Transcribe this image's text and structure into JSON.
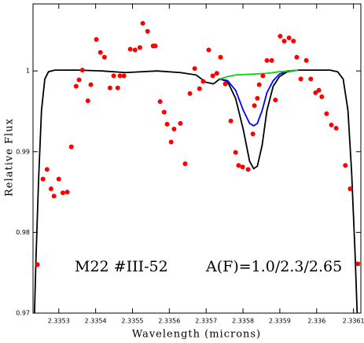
{
  "chart_data": {
    "type": "scatter",
    "xlabel": "Wavelength (microns)",
    "ylabel": "Relative Flux",
    "annotations": [
      "M22 #III-52",
      "A(F)=1.0/2.3/2.65"
    ],
    "xlim": [
      2.33523,
      2.33612
    ],
    "ylim": [
      0.97,
      1.0083
    ],
    "xticks": [
      2.3353,
      2.3354,
      2.3355,
      2.3356,
      2.3357,
      2.3358,
      2.3359,
      2.336,
      2.3361
    ],
    "yticks": [
      0.97,
      0.98,
      0.99,
      1
    ],
    "points": {
      "color": "#ff0000",
      "x": [
        2.335242,
        2.335257,
        2.335268,
        2.335279,
        2.335287,
        2.3353,
        2.335311,
        2.335323,
        2.335334,
        2.335347,
        2.335355,
        2.335364,
        2.335379,
        2.335387,
        2.335402,
        2.335413,
        2.335424,
        2.335439,
        2.335449,
        2.33546,
        2.335466,
        2.335477,
        2.335494,
        2.335507,
        2.33552,
        2.335528,
        2.335541,
        2.335556,
        2.335562,
        2.335575,
        2.335586,
        2.335594,
        2.335605,
        2.335613,
        2.33563,
        2.335643,
        2.335656,
        2.335669,
        2.335682,
        2.335692,
        2.335707,
        2.335718,
        2.335729,
        2.335739,
        2.335752,
        2.335767,
        2.33578,
        2.335788,
        2.335799,
        2.335814,
        2.335827,
        2.335831,
        2.335839,
        2.335844,
        2.335854,
        2.335865,
        2.335878,
        2.335888,
        2.335901,
        2.335912,
        2.335925,
        2.335937,
        2.335946,
        2.335957,
        2.335972,
        2.335984,
        2.335997,
        2.336006,
        2.336014,
        2.336027,
        2.33604,
        2.336053,
        2.336078,
        2.336091,
        2.336112
      ],
      "y": [
        0.976,
        0.9866,
        0.9878,
        0.9854,
        0.9845,
        0.9866,
        0.9849,
        0.985,
        0.9906,
        0.9981,
        0.9989,
        1.0001,
        0.9963,
        0.9983,
        1.0039,
        1.0023,
        1.0017,
        0.9979,
        0.9994,
        0.9979,
        0.9994,
        0.9994,
        1.0027,
        1.0026,
        1.0029,
        1.0059,
        1.0049,
        1.0031,
        1.0031,
        0.9962,
        0.9949,
        0.9934,
        0.9912,
        0.9928,
        0.9935,
        0.9885,
        0.9972,
        1.0003,
        0.9978,
        0.9987,
        1.0026,
        0.9994,
        0.9997,
        1.0017,
        0.9984,
        0.9938,
        0.9899,
        0.9883,
        0.9881,
        0.9878,
        0.9922,
        0.9957,
        0.9966,
        0.9983,
        0.9994,
        1.0013,
        1.0013,
        0.9964,
        1.0043,
        1.0037,
        1.0041,
        1.0037,
        1.0017,
        0.999,
        1.0013,
        0.999,
        0.9973,
        0.9976,
        0.9968,
        0.9947,
        0.9933,
        0.9929,
        0.9883,
        0.9854,
        0.9761
      ]
    },
    "lines": [
      {
        "color": "#000000",
        "x": [
          2.335234,
          2.335238,
          2.335245,
          2.335253,
          2.335262,
          2.335272,
          2.335289,
          2.335353,
          2.335417,
          2.335481,
          2.335567,
          2.33563,
          2.335673,
          2.335699,
          2.33572,
          2.335737,
          2.335758,
          2.33578,
          2.335801,
          2.335818,
          2.335829,
          2.335839,
          2.335852,
          2.335865,
          2.335882,
          2.335899,
          2.33592,
          2.33595,
          2.336036,
          2.336057,
          2.336072,
          2.336085,
          2.336095,
          2.336104,
          2.33611
        ],
        "y": [
          0.97,
          0.9767,
          0.9864,
          0.9951,
          0.999,
          0.9999,
          1.0001,
          1.0001,
          1.0,
          0.9998,
          1.0,
          0.9998,
          0.9995,
          0.9986,
          0.9984,
          0.999,
          0.9987,
          0.9966,
          0.9927,
          0.9888,
          0.9879,
          0.9882,
          0.9908,
          0.9951,
          0.9981,
          0.9993,
          0.9999,
          1.0001,
          1.0001,
          0.9999,
          0.999,
          0.9951,
          0.9874,
          0.9777,
          0.97
        ]
      },
      {
        "color": "#0000ff",
        "x": [
          2.335737,
          2.335758,
          2.33578,
          2.335801,
          2.335818,
          2.335829,
          2.335839,
          2.335852,
          2.335865,
          2.335882,
          2.335899,
          2.33592,
          2.33595
        ],
        "y": [
          0.999,
          0.9988,
          0.9976,
          0.9951,
          0.9935,
          0.9932,
          0.9935,
          0.9951,
          0.9973,
          0.9988,
          0.9996,
          1.0,
          1.0001
        ]
      },
      {
        "color": "#00dd00",
        "x": [
          2.335737,
          2.335758,
          2.33578,
          2.335822,
          2.335865,
          2.335899,
          2.335929,
          2.33595
        ],
        "y": [
          0.999,
          0.9993,
          0.9995,
          0.9996,
          0.9997,
          0.9999,
          1.0,
          1.0001
        ]
      }
    ]
  }
}
